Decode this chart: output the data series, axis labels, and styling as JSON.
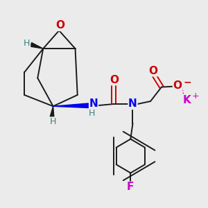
{
  "background_color": "#ebebeb",
  "figsize": [
    3.0,
    3.0
  ],
  "dpi": 100,
  "bond_color": "#1a1a1a",
  "bond_lw": 1.4,
  "atom_colors": {
    "O": "#cc0000",
    "N": "#0000ee",
    "H": "#3d8080",
    "F": "#cc00cc",
    "K": "#cc00cc",
    "C": "#1a1a1a"
  }
}
